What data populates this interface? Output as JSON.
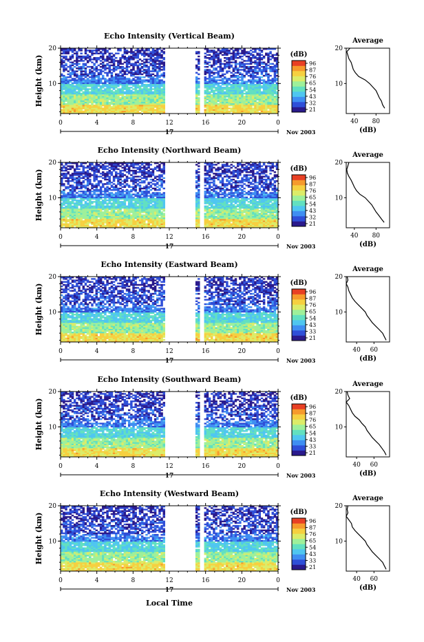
{
  "panels": [
    {
      "title": "Echo Intensity (Vertical Beam)",
      "avg_profile": [
        [
          96,
          3
        ],
        [
          92,
          4
        ],
        [
          90,
          5
        ],
        [
          86,
          6
        ],
        [
          83,
          7
        ],
        [
          80,
          8
        ],
        [
          74,
          9
        ],
        [
          68,
          10
        ],
        [
          60,
          11
        ],
        [
          48,
          12
        ],
        [
          42,
          13
        ],
        [
          38,
          14
        ],
        [
          36,
          15
        ],
        [
          34,
          16
        ],
        [
          30,
          17
        ],
        [
          28,
          18
        ],
        [
          26,
          19
        ],
        [
          32,
          20
        ]
      ]
    },
    {
      "title": "Echo Intensity (Northward Beam)",
      "avg_profile": [
        [
          95,
          3
        ],
        [
          90,
          4
        ],
        [
          85,
          5
        ],
        [
          80,
          6
        ],
        [
          76,
          7
        ],
        [
          72,
          8
        ],
        [
          66,
          9
        ],
        [
          60,
          10
        ],
        [
          50,
          11
        ],
        [
          44,
          12
        ],
        [
          40,
          13
        ],
        [
          37,
          14
        ],
        [
          34,
          15
        ],
        [
          30,
          16
        ],
        [
          27,
          17
        ],
        [
          26,
          18
        ],
        [
          28,
          19
        ],
        [
          30,
          20
        ]
      ]
    },
    {
      "title": "Echo Intensity (Eastward Beam)",
      "avg_profile": [
        [
          74,
          2
        ],
        [
          72,
          3
        ],
        [
          70,
          4
        ],
        [
          66,
          5
        ],
        [
          62,
          6
        ],
        [
          58,
          7
        ],
        [
          55,
          8
        ],
        [
          52,
          9
        ],
        [
          50,
          10
        ],
        [
          46,
          11
        ],
        [
          42,
          12
        ],
        [
          38,
          13
        ],
        [
          35,
          14
        ],
        [
          33,
          15
        ],
        [
          31,
          16
        ],
        [
          30,
          17
        ],
        [
          28,
          18
        ],
        [
          30,
          19
        ],
        [
          29,
          20
        ]
      ]
    },
    {
      "title": "Echo Intensity (Southward Beam)",
      "avg_profile": [
        [
          74,
          2
        ],
        [
          72,
          3
        ],
        [
          69,
          4
        ],
        [
          66,
          5
        ],
        [
          62,
          6
        ],
        [
          58,
          7
        ],
        [
          55,
          8
        ],
        [
          52,
          9
        ],
        [
          50,
          10
        ],
        [
          46,
          11
        ],
        [
          43,
          12
        ],
        [
          38,
          13
        ],
        [
          35,
          14
        ],
        [
          33,
          15
        ],
        [
          31,
          16
        ],
        [
          28,
          17
        ],
        [
          32,
          18
        ],
        [
          30,
          19
        ],
        [
          29,
          20
        ]
      ]
    },
    {
      "title": "Echo Intensity (Westward Beam)",
      "avg_profile": [
        [
          74,
          2
        ],
        [
          72,
          3
        ],
        [
          70,
          4
        ],
        [
          66,
          5
        ],
        [
          62,
          6
        ],
        [
          58,
          7
        ],
        [
          55,
          8
        ],
        [
          52,
          9
        ],
        [
          50,
          10
        ],
        [
          46,
          11
        ],
        [
          42,
          12
        ],
        [
          38,
          13
        ],
        [
          35,
          14
        ],
        [
          34,
          15
        ],
        [
          31,
          16
        ],
        [
          28,
          17
        ],
        [
          30,
          18
        ],
        [
          29,
          19
        ],
        [
          30,
          20
        ]
      ]
    }
  ],
  "labels": {
    "ylabel": "Height (km)",
    "colorbar_unit": "(dB)",
    "avg_title": "Average",
    "avg_xlabel": "(dB)",
    "day": "17",
    "month_year": "Nov 2003",
    "xlabel": "Local Time"
  },
  "chart_data": {
    "type": "heatmap",
    "x_ticks": [
      "0",
      "4",
      "8",
      "12",
      "16",
      "20",
      "0"
    ],
    "xlim_hours": [
      0,
      24
    ],
    "y_ticks": [
      "10",
      "20"
    ],
    "ylim_km": [
      1.5,
      20
    ],
    "data_gap_hours": [
      [
        11.5,
        14.8
      ],
      [
        15.3,
        15.9
      ]
    ],
    "colorbar_ticks": [
      "96",
      "87",
      "76",
      "65",
      "54",
      "43",
      "32",
      "21"
    ],
    "colorbar_ticks_alt": [
      "96",
      "87",
      "76",
      "65",
      "54",
      "43",
      "33",
      "21"
    ],
    "avg_x_ticks": [
      "40",
      "80"
    ],
    "avg_x_ticks_alt": [
      "40",
      "60"
    ],
    "colors": [
      "#2a1a8c",
      "#2f4fd8",
      "#3f8ef2",
      "#4fc6f0",
      "#62e0c0",
      "#9ef09a",
      "#dcec68",
      "#f6d040",
      "#f69a2c",
      "#e84024"
    ]
  }
}
